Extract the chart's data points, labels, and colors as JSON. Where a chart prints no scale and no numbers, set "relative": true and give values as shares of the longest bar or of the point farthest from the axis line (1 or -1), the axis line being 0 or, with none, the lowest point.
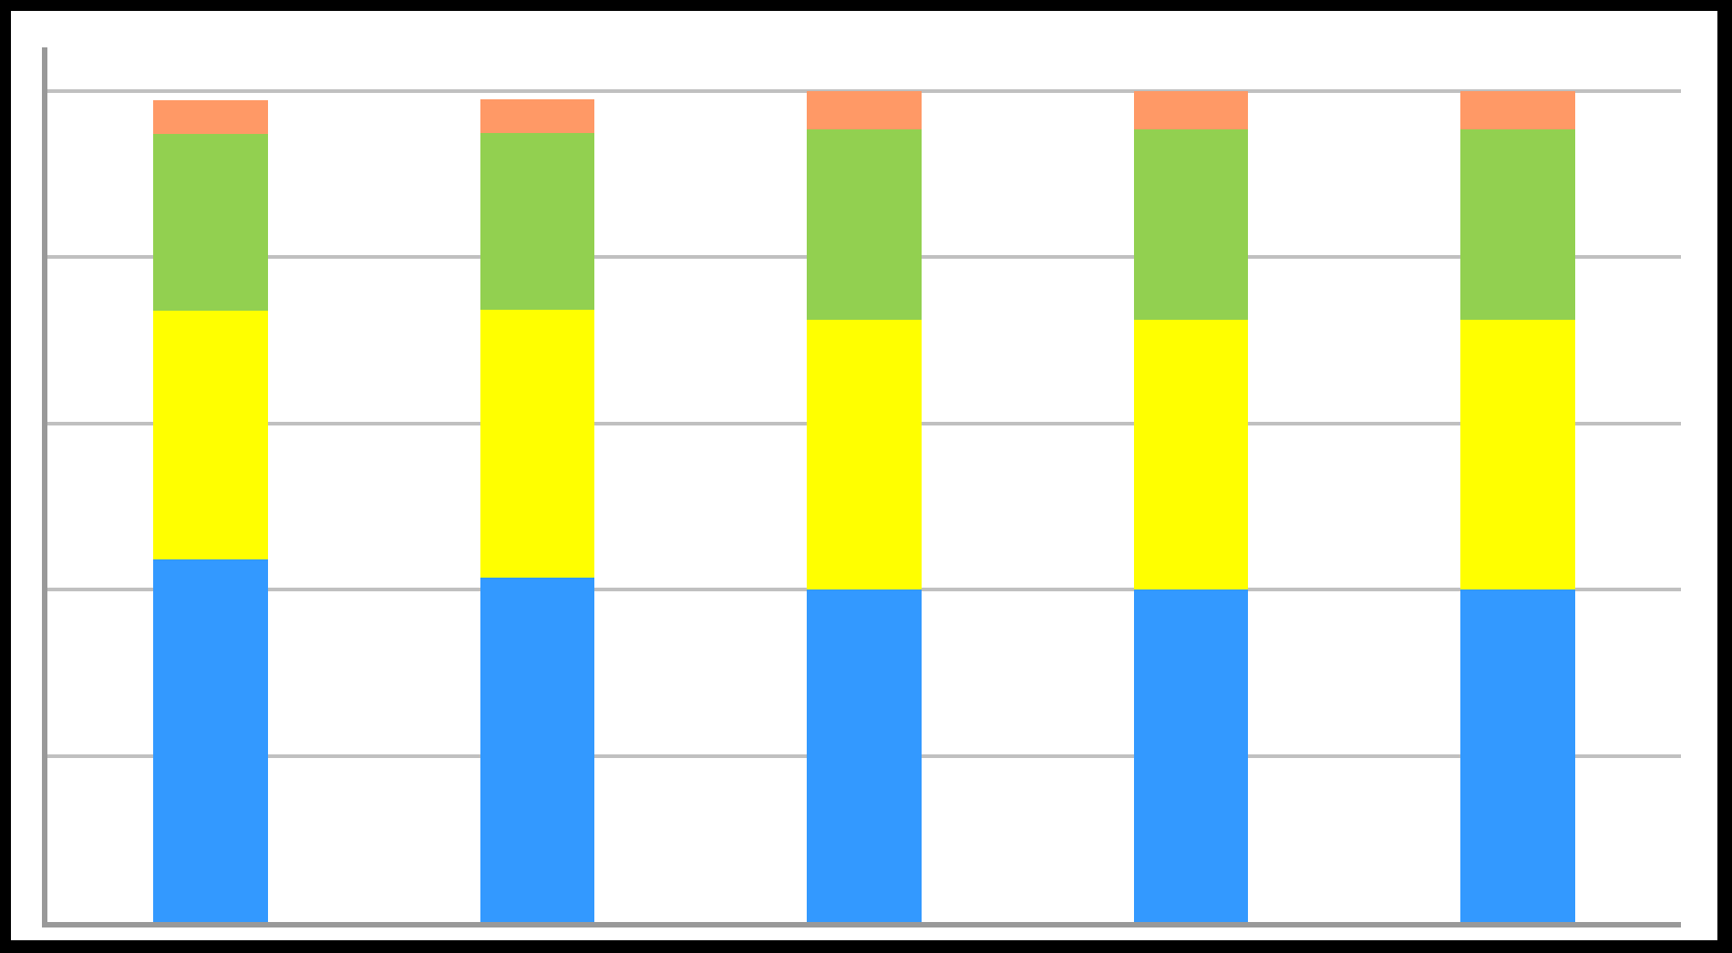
{
  "chart_data": {
    "type": "bar",
    "relative": true,
    "stacked": true,
    "grid": true,
    "categories": [
      null,
      null,
      null,
      null,
      null
    ],
    "series": [
      {
        "color": "#3399ff",
        "values": [
          0.436,
          0.415,
          0.4,
          0.4,
          0.4
        ]
      },
      {
        "color": "#ffff00",
        "values": [
          0.3,
          0.322,
          0.325,
          0.325,
          0.325
        ]
      },
      {
        "color": "#92d050",
        "values": [
          0.213,
          0.213,
          0.229,
          0.229,
          0.229
        ]
      },
      {
        "color": "#ff9966",
        "values": [
          0.04,
          0.04,
          0.046,
          0.046,
          0.046
        ]
      }
    ]
  }
}
